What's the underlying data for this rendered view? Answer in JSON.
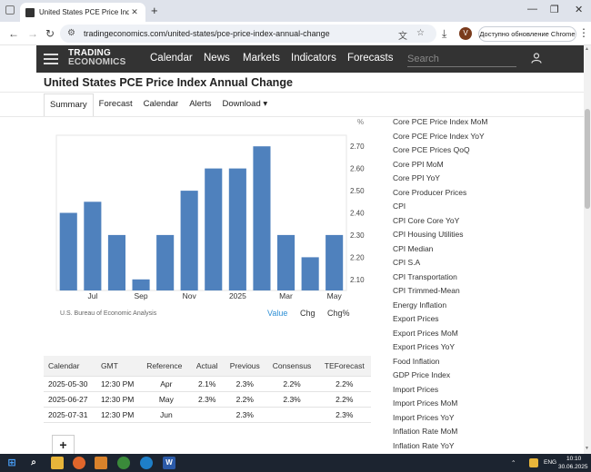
{
  "browser": {
    "tab_title": "United States PCE Price Index Ann",
    "tab_close": "✕",
    "new_tab": "+",
    "window_minimize": "—",
    "window_maximize": "❐",
    "window_close": "✕",
    "url": "tradingeconomics.com/united-states/pce-price-index-annual-change",
    "profile_initial": "V",
    "update_button": "Доступно обновление Chrome"
  },
  "site": {
    "logo_line1": "TRADING",
    "logo_line2": "ECONOMICS",
    "nav": [
      "Calendar",
      "News",
      "Markets",
      "Indicators",
      "Forecasts"
    ],
    "search_placeholder": "Search"
  },
  "page": {
    "title": "United States PCE Price Index Annual Change",
    "tabs": [
      "Summary",
      "Forecast",
      "Calendar",
      "Alerts",
      "Download ▾"
    ],
    "active_tab": "Summary"
  },
  "chart_data": {
    "type": "bar",
    "title": "",
    "xlabel": "",
    "ylabel": "%",
    "ylim": [
      2.05,
      2.75
    ],
    "yticks": [
      2.1,
      2.2,
      2.3,
      2.4,
      2.5,
      2.6,
      2.7
    ],
    "x_labels": [
      "Jul",
      "Sep",
      "Nov",
      "2025",
      "Mar",
      "May"
    ],
    "x_label_positions": [
      1.5,
      3.5,
      5.5,
      7.5,
      9.5,
      11.5
    ],
    "values": [
      2.4,
      2.45,
      2.3,
      2.1,
      2.3,
      2.5,
      2.6,
      2.6,
      2.7,
      2.3,
      2.2,
      2.3
    ],
    "bar_color": "#4f81bd",
    "grid": false,
    "y_axis_side": "right",
    "source": "U.S. Bureau of Economic Analysis"
  },
  "chart_controls": {
    "value": "Value",
    "chg": "Chg",
    "chg_pct": "Chg%"
  },
  "calendar": {
    "headers": [
      "Calendar",
      "GMT",
      "Reference",
      "Actual",
      "Previous",
      "Consensus",
      "TEForecast"
    ],
    "rows": [
      [
        "2025-05-30",
        "12:30 PM",
        "Apr",
        "2.1%",
        "2.3%",
        "2.2%",
        "2.2%"
      ],
      [
        "2025-06-27",
        "12:30 PM",
        "May",
        "2.3%",
        "2.2%",
        "2.3%",
        "2.2%"
      ],
      [
        "2025-07-31",
        "12:30 PM",
        "Jun",
        "",
        "2.3%",
        "",
        "2.3%"
      ]
    ],
    "add_label": "+"
  },
  "related": [
    "Core PCE Price Index MoM",
    "Core PCE Price Index YoY",
    "Core PCE Prices QoQ",
    "Core PPI MoM",
    "Core PPI YoY",
    "Core Producer Prices",
    "CPI",
    "CPI Core Core YoY",
    "CPI Housing Utilities",
    "CPI Median",
    "CPI S.A",
    "CPI Transportation",
    "CPI Trimmed-Mean",
    "Energy Inflation",
    "Export Prices",
    "Export Prices MoM",
    "Export Prices YoY",
    "Food Inflation",
    "GDP Price Index",
    "Import Prices",
    "Import Prices MoM",
    "Import Prices YoY",
    "Inflation Rate MoM",
    "Inflation Rate YoY"
  ],
  "taskbar": {
    "lang": "ENG",
    "time": "10:10",
    "date": "30.06.2025"
  }
}
